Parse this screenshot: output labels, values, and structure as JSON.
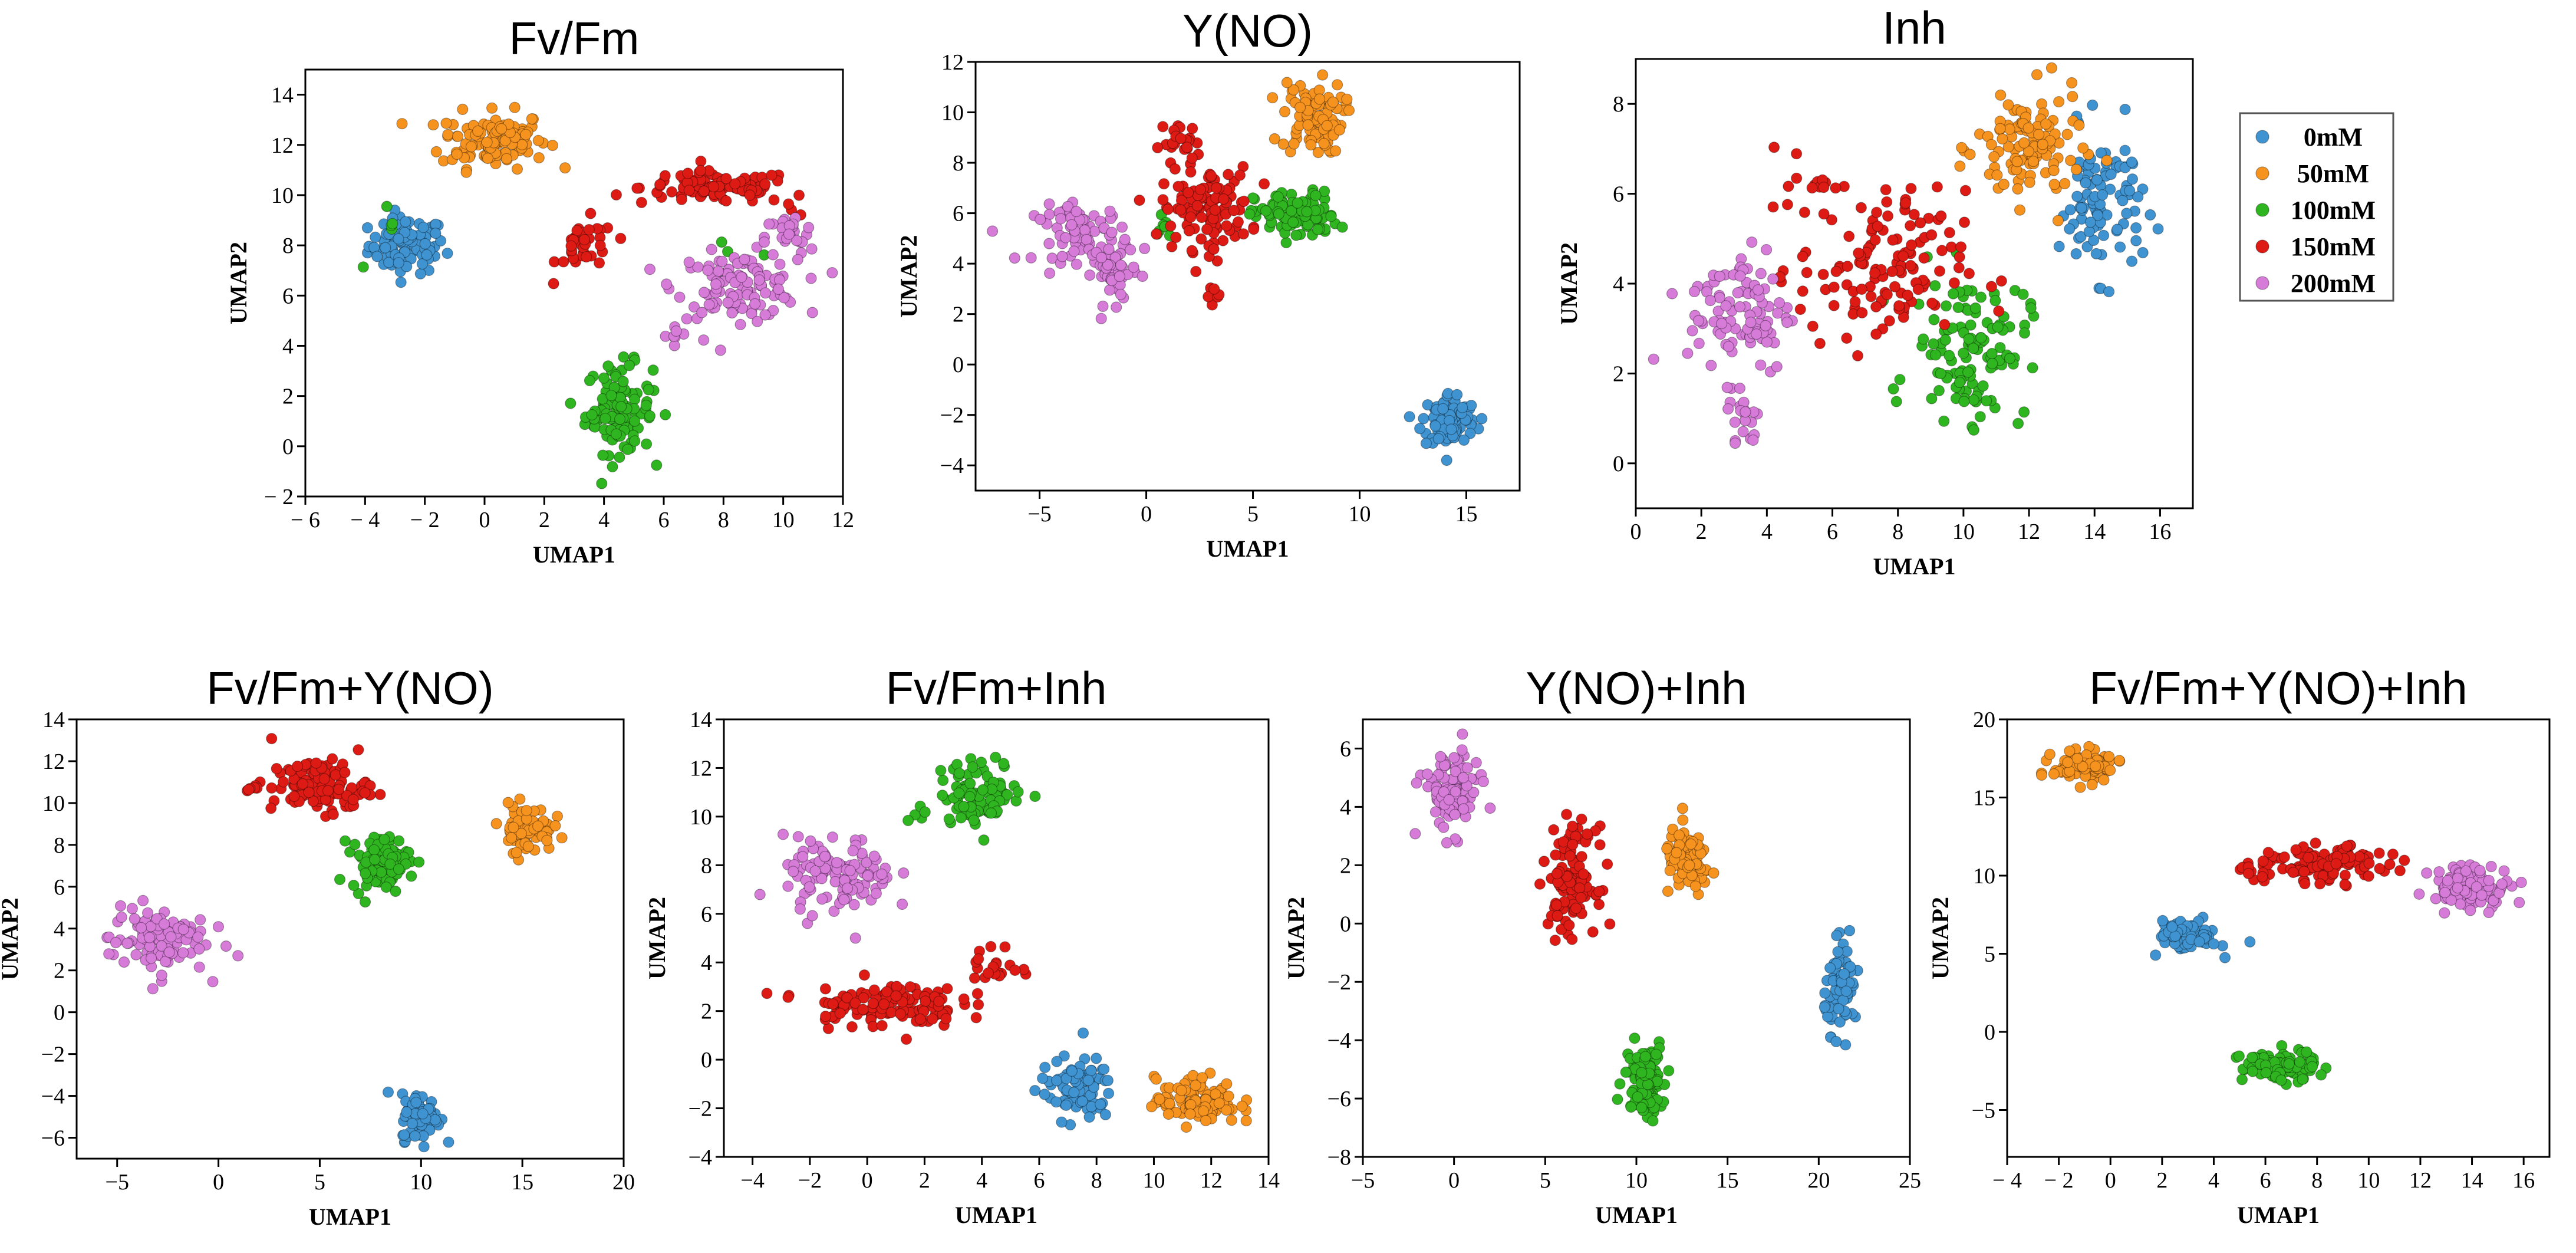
{
  "colors": {
    "0mM": "#3f93d0",
    "50mM": "#f6921e",
    "100mM": "#2fb51f",
    "150mM": "#dd1b14",
    "200mM": "#d77bd9"
  },
  "legend": {
    "items": [
      {
        "label": "0mM",
        "color": "#3f93d0"
      },
      {
        "label": "50mM",
        "color": "#f6921e"
      },
      {
        "label": "100mM",
        "color": "#2fb51f"
      },
      {
        "label": "150mM",
        "color": "#dd1b14"
      },
      {
        "label": "200mM",
        "color": "#d77bd9"
      }
    ]
  },
  "chart_data": [
    {
      "type": "scatter",
      "title": "Fv/Fm",
      "xlabel": "UMAP1",
      "ylabel": "UMAP2",
      "xlim": [
        -6,
        12
      ],
      "ylim": [
        -2,
        15
      ],
      "xticks": [
        -6,
        -4,
        -2,
        0,
        2,
        4,
        6,
        8,
        10,
        12
      ],
      "xtick_labels": [
        "− 6",
        "− 4",
        "− 2",
        "0",
        "2",
        "4",
        "6",
        "8",
        "10",
        "12"
      ],
      "yticks": [
        -2,
        0,
        2,
        4,
        6,
        8,
        10,
        12,
        14
      ],
      "ytick_labels": [
        "− 2",
        "0",
        "2",
        "4",
        "6",
        "8",
        "10",
        "12",
        "14"
      ],
      "series": [
        {
          "name": "0mM",
          "clusters": [
            [
              -2.6,
              8.0,
              0.8,
              0.7,
              95
            ]
          ]
        },
        {
          "name": "50mM",
          "clusters": [
            [
              0.3,
              12.2,
              1.1,
              0.7,
              110
            ]
          ]
        },
        {
          "name": "100mM",
          "clusters": [
            [
              4.5,
              1.5,
              0.7,
              1.1,
              110
            ],
            [
              8.5,
              7.5,
              0.6,
              0.6,
              4
            ],
            [
              -3.4,
              8.3,
              0.6,
              0.8,
              5
            ]
          ]
        },
        {
          "name": "150mM",
          "clusters": [
            [
              7.8,
              10.3,
              1.6,
              0.4,
              100
            ],
            [
              3.4,
              7.9,
              0.6,
              0.7,
              35
            ],
            [
              10.5,
              9.5,
              0.3,
              0.6,
              5
            ]
          ]
        },
        {
          "name": "200mM",
          "clusters": [
            [
              8.5,
              6.4,
              1.3,
              0.8,
              120
            ],
            [
              10.2,
              8.3,
              0.5,
              0.6,
              25
            ],
            [
              6.5,
              4.4,
              0.6,
              0.5,
              8
            ]
          ]
        }
      ]
    },
    {
      "type": "scatter",
      "title": "Y(NO)",
      "xlabel": "UMAP1",
      "ylabel": "UMAP2",
      "xlim": [
        -8,
        17.5
      ],
      "ylim": [
        -5,
        12
      ],
      "xticks": [
        -5,
        0,
        5,
        10,
        15
      ],
      "xtick_labels": [
        "−5",
        "0",
        "5",
        "10",
        "15"
      ],
      "yticks": [
        -4,
        -2,
        0,
        2,
        4,
        6,
        8,
        10,
        12
      ],
      "ytick_labels": [
        "−4",
        "−2",
        "0",
        "2",
        "4",
        "6",
        "8",
        "10",
        "12"
      ],
      "series": [
        {
          "name": "0mM",
          "clusters": [
            [
              14.2,
              -2.2,
              0.8,
              0.7,
              90
            ]
          ]
        },
        {
          "name": "50mM",
          "clusters": [
            [
              7.8,
              9.8,
              0.9,
              0.9,
              95
            ]
          ]
        },
        {
          "name": "100mM",
          "clusters": [
            [
              7.0,
              5.9,
              1.2,
              0.6,
              100
            ],
            [
              1.0,
              5.6,
              0.6,
              0.6,
              8
            ]
          ]
        },
        {
          "name": "150mM",
          "clusters": [
            [
              2.8,
              6.2,
              1.3,
              1.0,
              110
            ],
            [
              1.6,
              8.8,
              0.6,
              0.5,
              25
            ],
            [
              3.3,
              2.7,
              0.3,
              0.3,
              6
            ]
          ]
        },
        {
          "name": "200mM",
          "clusters": [
            [
              -3.0,
              5.2,
              1.4,
              0.7,
              70
            ],
            [
              -1.5,
              3.7,
              0.6,
              0.8,
              45
            ]
          ]
        }
      ]
    },
    {
      "type": "scatter",
      "title": "Inh",
      "xlabel": "UMAP1",
      "ylabel": "UMAP2",
      "xlim": [
        0,
        17
      ],
      "ylim": [
        -1,
        9
      ],
      "xticks": [
        0,
        2,
        4,
        6,
        8,
        10,
        12,
        14,
        16
      ],
      "xtick_labels": [
        "0",
        "2",
        "4",
        "6",
        "8",
        "10",
        "12",
        "14",
        "16"
      ],
      "yticks": [
        0,
        2,
        4,
        6,
        8
      ],
      "ytick_labels": [
        "0",
        "2",
        "4",
        "6",
        "8"
      ],
      "series": [
        {
          "name": "0mM",
          "clusters": [
            [
              14.2,
              5.8,
              0.8,
              1.0,
              95
            ]
          ]
        },
        {
          "name": "50mM",
          "clusters": [
            [
              12.0,
              7.0,
              1.0,
              0.8,
              110
            ]
          ]
        },
        {
          "name": "100mM",
          "clusters": [
            [
              10.2,
              2.6,
              1.1,
              1.0,
              120
            ]
          ]
        },
        {
          "name": "150mM",
          "clusters": [
            [
              7.5,
              4.3,
              1.6,
              1.1,
              130
            ],
            [
              5.2,
              6.3,
              0.5,
              0.5,
              15
            ]
          ]
        },
        {
          "name": "200mM",
          "clusters": [
            [
              3.2,
              3.4,
              1.0,
              0.9,
              100
            ],
            [
              3.3,
              1.0,
              0.3,
              0.5,
              20
            ]
          ]
        }
      ]
    },
    {
      "type": "scatter",
      "title": "Fv/Fm+Y(NO)",
      "xlabel": "UMAP1",
      "ylabel": "UMAP2",
      "xlim": [
        -7,
        20
      ],
      "ylim": [
        -7,
        14
      ],
      "xticks": [
        -5,
        0,
        5,
        10,
        15,
        20
      ],
      "xtick_labels": [
        "−5",
        "0",
        "5",
        "10",
        "15",
        "20"
      ],
      "yticks": [
        -6,
        -4,
        -2,
        0,
        2,
        4,
        6,
        8,
        10,
        12,
        14
      ],
      "ytick_labels": [
        "−6",
        "−4",
        "−2",
        "0",
        "2",
        "4",
        "6",
        "8",
        "10",
        "12",
        "14"
      ],
      "series": [
        {
          "name": "0mM",
          "clusters": [
            [
              10.0,
              -5.0,
              0.6,
              0.7,
              80
            ]
          ]
        },
        {
          "name": "50mM",
          "clusters": [
            [
              15.2,
              8.8,
              0.8,
              0.7,
              75
            ]
          ]
        },
        {
          "name": "100mM",
          "clusters": [
            [
              8.0,
              7.2,
              0.9,
              0.8,
              95
            ]
          ]
        },
        {
          "name": "150mM",
          "clusters": [
            [
              5.0,
              10.8,
              1.5,
              0.8,
              110
            ],
            [
              1.5,
              10.8,
              0.4,
              0.3,
              6
            ]
          ]
        },
        {
          "name": "200mM",
          "clusters": [
            [
              -3.0,
              3.5,
              1.5,
              1.0,
              100
            ]
          ]
        }
      ]
    },
    {
      "type": "scatter",
      "title": "Fv/Fm+Inh",
      "xlabel": "UMAP1",
      "ylabel": "UMAP2",
      "xlim": [
        -5,
        14
      ],
      "ylim": [
        -4,
        14
      ],
      "xticks": [
        -4,
        -2,
        0,
        2,
        4,
        6,
        8,
        10,
        12,
        14
      ],
      "xtick_labels": [
        "−4",
        "−2",
        "0",
        "2",
        "4",
        "6",
        "8",
        "10",
        "12",
        "14"
      ],
      "yticks": [
        -4,
        -2,
        0,
        2,
        4,
        6,
        8,
        10,
        12,
        14
      ],
      "ytick_labels": [
        "−4",
        "−2",
        "0",
        "2",
        "4",
        "6",
        "8",
        "10",
        "12",
        "14"
      ],
      "series": [
        {
          "name": "0mM",
          "clusters": [
            [
              7.3,
              -1.2,
              0.8,
              0.8,
              90
            ]
          ]
        },
        {
          "name": "50mM",
          "clusters": [
            [
              11.5,
              -1.7,
              0.9,
              0.6,
              100
            ]
          ]
        },
        {
          "name": "100mM",
          "clusters": [
            [
              4.0,
              11.0,
              0.9,
              0.8,
              95
            ],
            [
              2.0,
              10.0,
              0.4,
              0.4,
              5
            ]
          ]
        },
        {
          "name": "150mM",
          "clusters": [
            [
              0.5,
              2.3,
              1.7,
              0.6,
              120
            ],
            [
              4.5,
              3.8,
              0.5,
              0.6,
              20
            ]
          ]
        },
        {
          "name": "200mM",
          "clusters": [
            [
              -1.0,
              7.5,
              1.2,
              1.0,
              110
            ]
          ]
        }
      ]
    },
    {
      "type": "scatter",
      "title": "Y(NO)+Inh",
      "xlabel": "UMAP1",
      "ylabel": "UMAP2",
      "xlim": [
        -5,
        25
      ],
      "ylim": [
        -8,
        7
      ],
      "xticks": [
        -5,
        0,
        5,
        10,
        15,
        20,
        25
      ],
      "xtick_labels": [
        "−5",
        "0",
        "5",
        "10",
        "15",
        "20",
        "25"
      ],
      "yticks": [
        -8,
        -6,
        -4,
        -2,
        0,
        2,
        4,
        6
      ],
      "ytick_labels": [
        "−8",
        "−6",
        "−4",
        "−2",
        "0",
        "2",
        "4",
        "6"
      ],
      "series": [
        {
          "name": "0mM",
          "clusters": [
            [
              21.3,
              -2.2,
              0.6,
              0.9,
              70
            ]
          ]
        },
        {
          "name": "50mM",
          "clusters": [
            [
              12.8,
              2.1,
              0.8,
              0.7,
              90
            ]
          ]
        },
        {
          "name": "100mM",
          "clusters": [
            [
              10.5,
              -5.3,
              0.7,
              0.8,
              100
            ]
          ]
        },
        {
          "name": "150mM",
          "clusters": [
            [
              6.5,
              1.5,
              0.8,
              1.1,
              115
            ]
          ]
        },
        {
          "name": "200mM",
          "clusters": [
            [
              -0.2,
              4.5,
              1.0,
              0.9,
              100
            ]
          ]
        }
      ]
    },
    {
      "type": "scatter",
      "title": "Fv/Fm+Y(NO)+Inh",
      "xlabel": "UMAP1",
      "ylabel": "UMAP2",
      "xlim": [
        -4,
        17
      ],
      "ylim": [
        -8,
        20
      ],
      "xticks": [
        -4,
        -2,
        0,
        2,
        4,
        6,
        8,
        10,
        12,
        14,
        16
      ],
      "xtick_labels": [
        "− 4",
        "− 2",
        "0",
        "2",
        "4",
        "6",
        "8",
        "10",
        "12",
        "14",
        "16"
      ],
      "yticks": [
        -5,
        0,
        5,
        10,
        15,
        20
      ],
      "ytick_labels": [
        "−5",
        "0",
        "5",
        "10",
        "15",
        "20"
      ],
      "series": [
        {
          "name": "0mM",
          "clusters": [
            [
              3.0,
              6.2,
              0.7,
              0.6,
              80
            ]
          ]
        },
        {
          "name": "50mM",
          "clusters": [
            [
              -0.9,
              17.0,
              0.8,
              0.6,
              95
            ]
          ]
        },
        {
          "name": "100mM",
          "clusters": [
            [
              6.5,
              -2.2,
              0.9,
              0.6,
              95
            ]
          ]
        },
        {
          "name": "150mM",
          "clusters": [
            [
              8.5,
              10.7,
              1.4,
              0.7,
              110
            ],
            [
              5.5,
              10.3,
              0.5,
              0.4,
              15
            ]
          ]
        },
        {
          "name": "200mM",
          "clusters": [
            [
              14.0,
              9.3,
              1.0,
              0.9,
              100
            ]
          ]
        }
      ]
    }
  ]
}
